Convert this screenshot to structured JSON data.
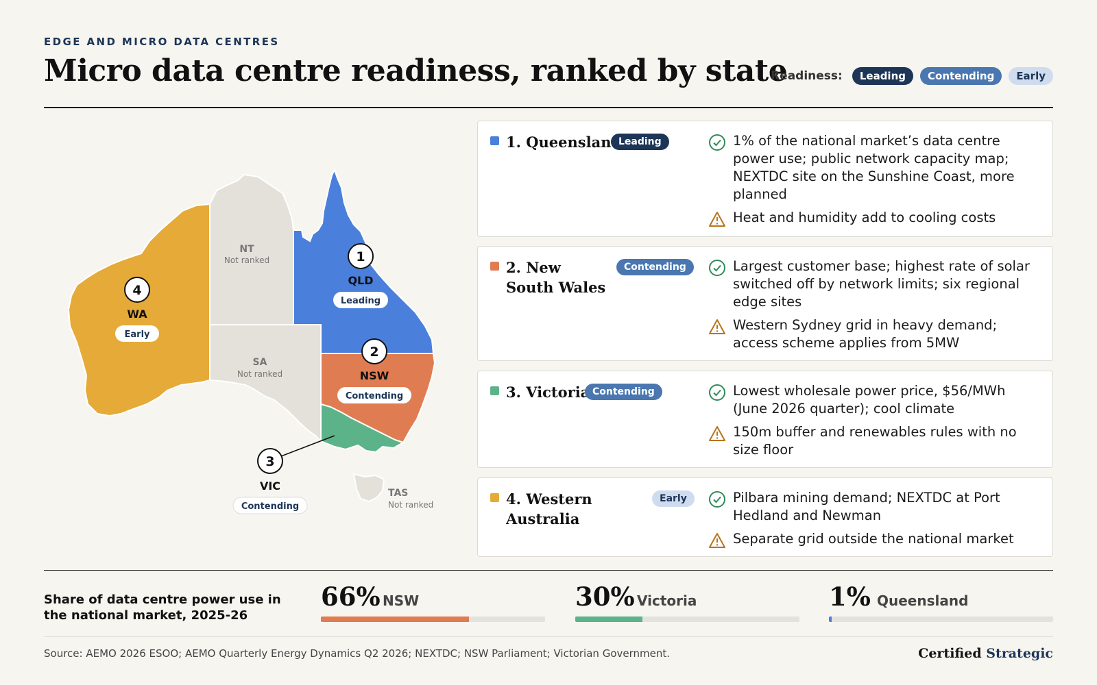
{
  "header": {
    "eyebrow": "EDGE AND MICRO DATA CENTRES",
    "title": "Micro data centre readiness, ranked by state"
  },
  "legend": {
    "label": "Readiness:",
    "items": [
      "Leading",
      "Contending",
      "Early"
    ]
  },
  "colors": {
    "qld": "#4a7fdb",
    "nsw": "#e07c52",
    "vic": "#5cb389",
    "wa": "#e5aa38",
    "unranked": "#e3e1da",
    "leading": "#1d3557",
    "contending": "#4a77b0",
    "early": "#cfdcef"
  },
  "map": {
    "states": [
      {
        "rank": "1",
        "abbr": "QLD",
        "status": "Leading"
      },
      {
        "rank": "2",
        "abbr": "NSW",
        "status": "Contending"
      },
      {
        "rank": "3",
        "abbr": "VIC",
        "status": "Contending"
      },
      {
        "rank": "4",
        "abbr": "WA",
        "status": "Early"
      }
    ],
    "unranked": [
      {
        "abbr": "NT",
        "status": "Not ranked"
      },
      {
        "abbr": "SA",
        "status": "Not ranked"
      },
      {
        "abbr": "TAS",
        "status": "Not ranked"
      }
    ]
  },
  "cards": [
    {
      "name": "1. Queensland",
      "pill": "Leading",
      "pro": "1% of the national market’s data centre power use; public network capacity map; NEXTDC site on the Sunshine Coast, more planned",
      "con": "Heat and humidity add to cooling costs"
    },
    {
      "name": "2. New South Wales",
      "pill": "Contending",
      "pro": "Largest customer base; highest rate of solar switched off by network limits; six regional edge sites",
      "con": "Western Sydney grid in heavy demand; access scheme applies from 5MW"
    },
    {
      "name": "3. Victoria",
      "pill": "Contending",
      "pro": "Lowest wholesale power price, $56/MWh (June 2026 quarter); cool climate",
      "con": "150m buffer and renewables rules with no size floor"
    },
    {
      "name": "4. Western Australia",
      "pill": "Early",
      "pro": "Pilbara mining demand; NEXTDC at Port Hedland and Newman",
      "con": "Separate grid outside the national market"
    }
  ],
  "share": {
    "label": "Share of data centre power use in the national market, 2025-26",
    "stats": [
      {
        "value": "66%",
        "name": "NSW",
        "fraction": 0.66,
        "color": "#e07c52"
      },
      {
        "value": "30%",
        "name": "Victoria",
        "fraction": 0.3,
        "color": "#5cb389"
      },
      {
        "value": "1%",
        "name": "Queensland",
        "fraction": 0.01,
        "color": "#4a7fdb"
      }
    ]
  },
  "footer": {
    "source": "Source: AEMO 2026 ESOO; AEMO Quarterly Energy Dynamics Q2 2026; NEXTDC; NSW Parliament; Victorian Government.",
    "brand_1": "Certified",
    "brand_2": "Strategic"
  }
}
